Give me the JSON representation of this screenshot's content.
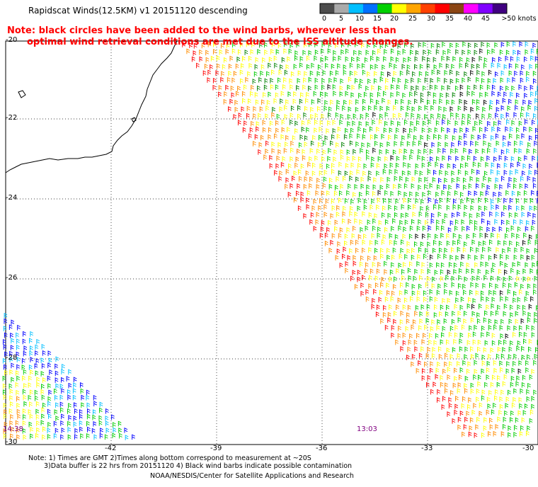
{
  "header": {
    "title": "Rapidscat Winds(12.5KM) v1 20151120 descending"
  },
  "note": {
    "line1": "Note: black circles have been added to the wind barbs, wherever less than",
    "line2": "optimal wind retrieval conditions are met due to the ISS altitude changes.",
    "color": "#ff0000"
  },
  "colorbar": {
    "labels": [
      "0",
      "5",
      "10",
      "15",
      "20",
      "25",
      "30",
      "35",
      "40",
      "45",
      ">50 knots"
    ],
    "colors": [
      "#4d4d4d",
      "#aaaaaa",
      "#00bfff",
      "#0070ff",
      "#00d000",
      "#ffff00",
      "#ffa500",
      "#ff4000",
      "#ff0000",
      "#8b4513",
      "#ff00ff",
      "#8000ff",
      "#400080"
    ]
  },
  "axes": {
    "lat_labels": [
      "-20",
      "-22",
      "-24",
      "-26",
      "-28",
      "-30"
    ],
    "lon_labels": [
      "-42",
      "-39",
      "-36",
      "-33",
      "-30"
    ]
  },
  "time_labels": {
    "left": "14:38",
    "right": "13:03"
  },
  "footer": {
    "line1": "Note: 1) Times are GMT 2)Times along bottom correspond to measurement at ~20S",
    "line2": "3)Data buffer is 22 hrs from 20151120 4) Black wind barbs indicate possible contamination",
    "line3": "NOAA/NESDIS/Center for Satellite Applications and Research"
  },
  "legend_colors": {
    "red": "#ff0000",
    "orange": "#ff8c00",
    "yellow": "#ffff00",
    "dark_green": "#008000",
    "green": "#00cc00",
    "blue": "#0000ff",
    "cyan": "#00bfff",
    "black": "#000000"
  }
}
